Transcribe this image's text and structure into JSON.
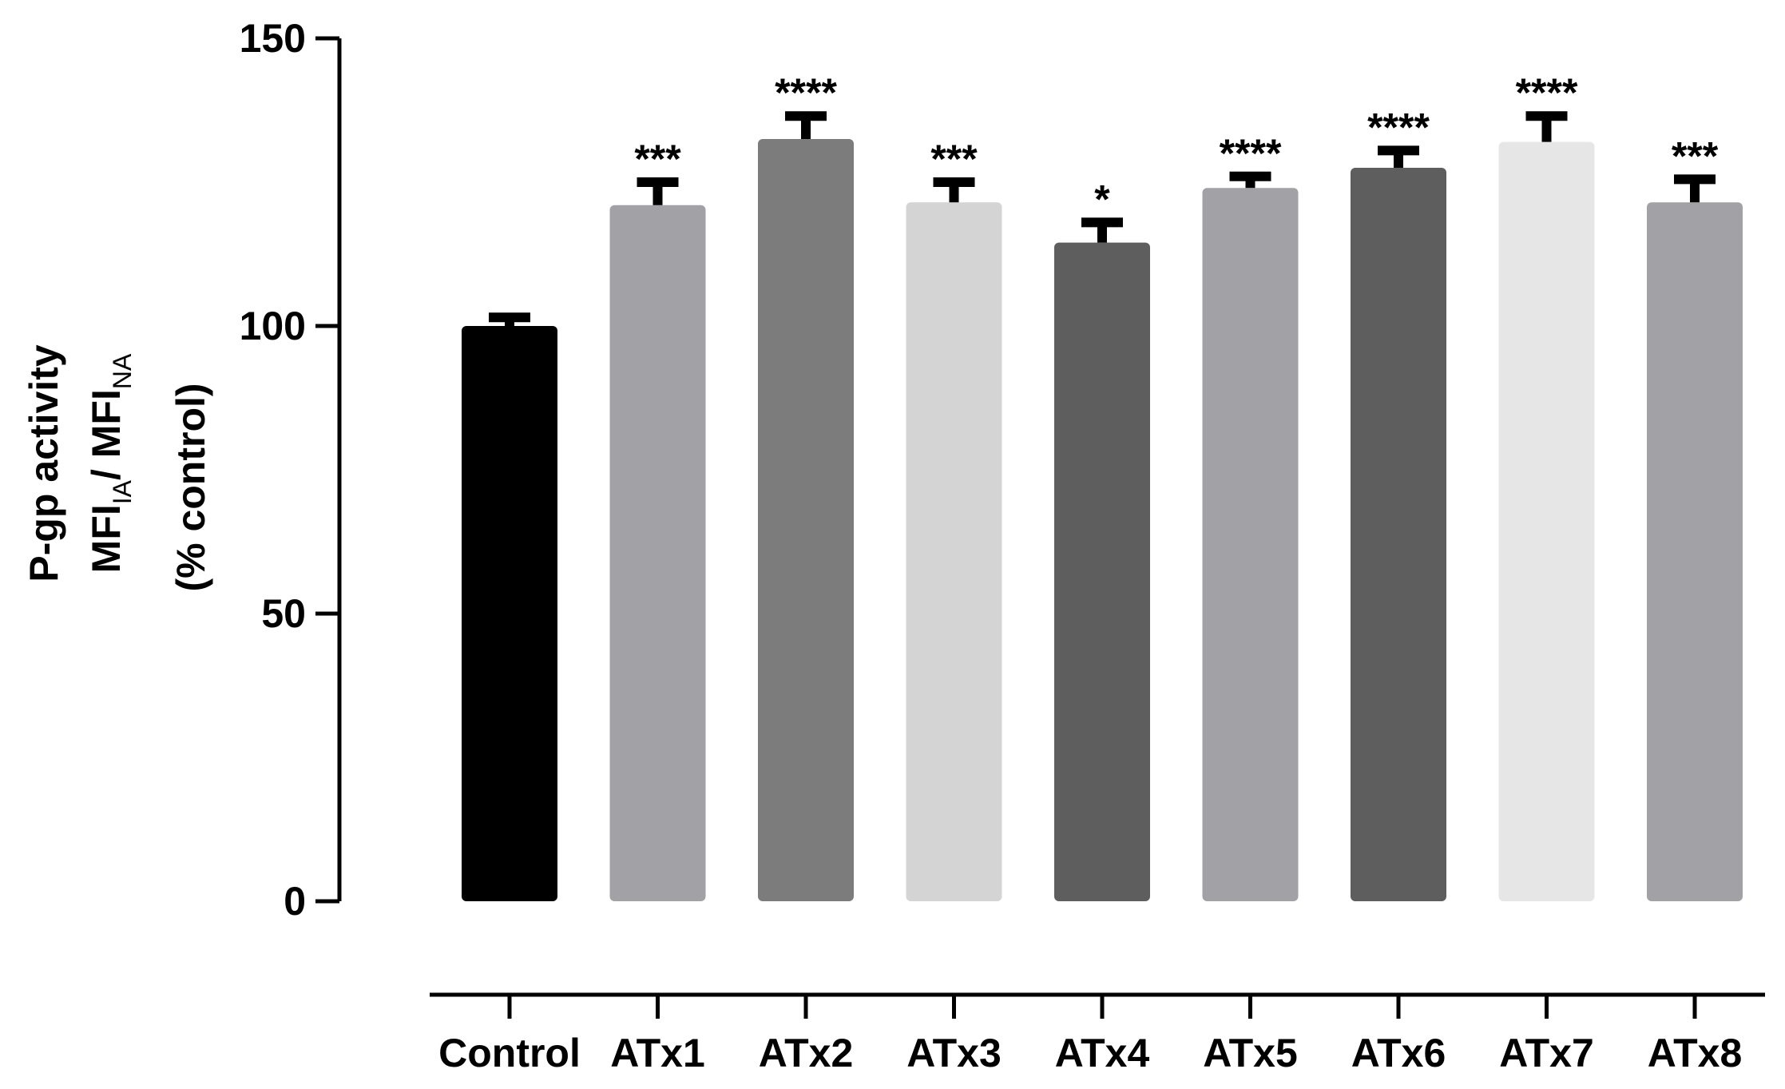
{
  "chart_data": {
    "type": "bar",
    "categories": [
      "Control",
      "ATx1",
      "ATx2",
      "ATx3",
      "ATx4",
      "ATx5",
      "ATx6",
      "ATx7",
      "ATx8"
    ],
    "values": [
      100,
      121,
      132.5,
      121.5,
      114.5,
      124,
      127.5,
      132,
      121.5
    ],
    "errors": [
      1.5,
      4,
      4,
      3.5,
      3.5,
      2,
      3,
      4.5,
      4
    ],
    "significance": [
      "",
      "***",
      "****",
      "***",
      "*",
      "****",
      "****",
      "****",
      "***"
    ],
    "bar_colors": [
      "#000000",
      "#a2a1a6",
      "#7c7c7c",
      "#d4d4d4",
      "#5e5e5e",
      "#a2a1a6",
      "#5e5e5e",
      "#e6e6e6",
      "#a2a1a6"
    ],
    "ylabel": {
      "line1": "P-gp activity",
      "line2_main1": "MFI",
      "line2_sub1": "IA",
      "line2_main2": "/ MFI",
      "line2_sub2": "NA",
      "line3": "(% control)"
    },
    "yticks": [
      "0",
      "50",
      "100",
      "150"
    ],
    "ylim": [
      0,
      150
    ],
    "grid": false,
    "legend": "none"
  }
}
